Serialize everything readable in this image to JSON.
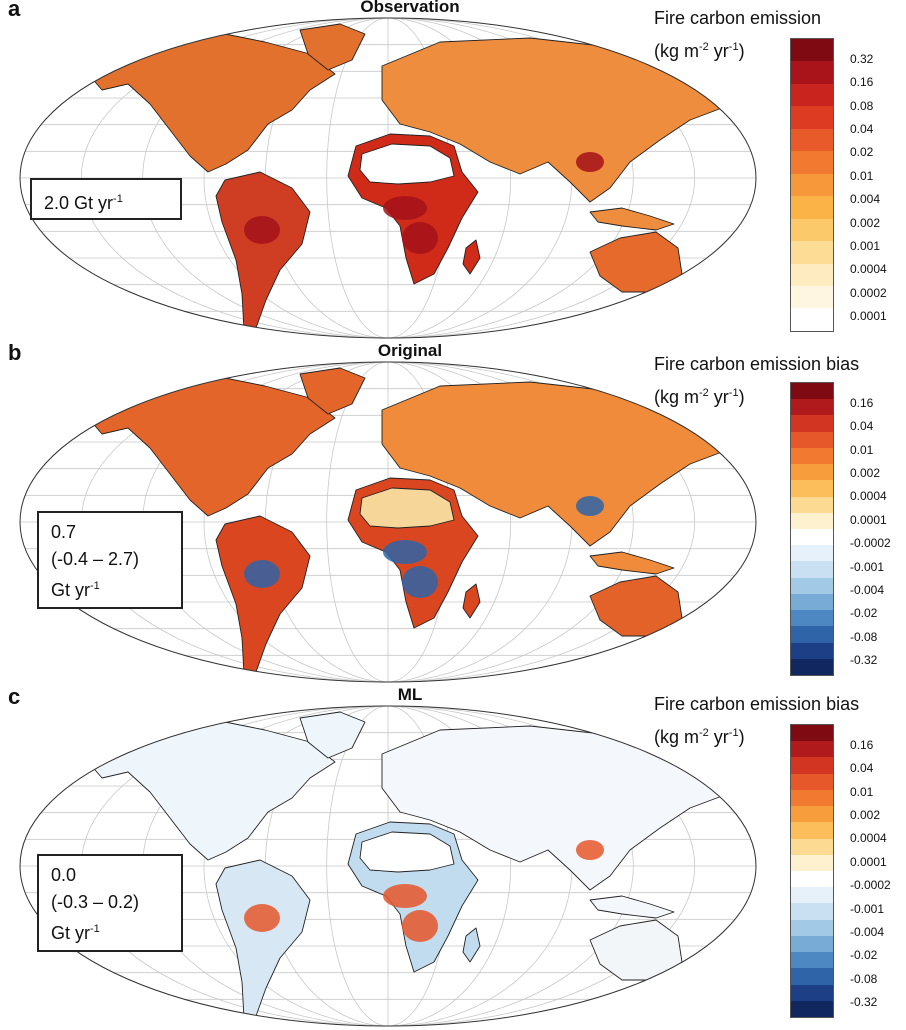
{
  "panels": [
    {
      "letter": "a",
      "title": "Observation",
      "colorbar_title_line1": "Fire carbon emission",
      "unit_pre": "(kg m",
      "unit_sup1": "-2",
      "unit_mid": " yr",
      "unit_sup2": "-1",
      "unit_post": ")",
      "ticks": [
        "0.32",
        "0.16",
        "0.08",
        "0.04",
        "0.02",
        "0.01",
        "0.004",
        "0.002",
        "0.001",
        "0.0004",
        "0.0002",
        "0.0001"
      ],
      "colors": [
        "#7f0a12",
        "#a8141a",
        "#c9251e",
        "#dd3b22",
        "#e85a2a",
        "#f17a30",
        "#f7983a",
        "#fbb347",
        "#fcc96a",
        "#fddd95",
        "#feebc0",
        "#fff6e2",
        "#ffffff"
      ],
      "total_lines": [
        "2.0 Gt yr"
      ],
      "total_unit_sup": "-1",
      "total_sup_line": 0,
      "map_colors": {
        "na": "#e2712d",
        "sa": "#cf3d22",
        "africa": "#d02a18",
        "eurasia": "#ee8d3e",
        "aus": "#e56a2c",
        "sahara": "#ffffff",
        "hot": "#a5121a"
      }
    },
    {
      "letter": "b",
      "title": "Original",
      "colorbar_title_line1": "Fire carbon emission bias",
      "unit_pre": "(kg m",
      "unit_sup1": "-2",
      "unit_mid": " yr",
      "unit_sup2": "-1",
      "unit_post": ")",
      "ticks": [
        "0.16",
        "0.04",
        "0.01",
        "0.002",
        "0.0004",
        "0.0001",
        "-0.0002",
        "-0.001",
        "-0.004",
        "-0.02",
        "-0.08",
        "-0.32"
      ],
      "colors": [
        "#7f0a12",
        "#b11a1c",
        "#d23522",
        "#e6572a",
        "#f17a30",
        "#f89d3c",
        "#fbbe5a",
        "#fdda92",
        "#fef1d0",
        "#ffffff",
        "#e6f1f9",
        "#c8e0f1",
        "#a2c9e6",
        "#78abd6",
        "#4d88c3",
        "#2f64a8",
        "#1d3f86",
        "#102760"
      ],
      "total_lines": [
        "0.7",
        "(-0.4 – 2.7)",
        "Gt yr"
      ],
      "total_unit_sup": "-1",
      "total_sup_line": 2,
      "map_colors": {
        "na": "#e4652a",
        "sa": "#d9461f",
        "africa": "#d9461f",
        "eurasia": "#ef8b3a",
        "aus": "#e3622a",
        "sahara": "#f7d69a",
        "hot": "#2f64a8"
      }
    },
    {
      "letter": "c",
      "title": "ML",
      "colorbar_title_line1": "Fire carbon emission bias",
      "unit_pre": "(kg m",
      "unit_sup1": "-2",
      "unit_mid": " yr",
      "unit_sup2": "-1",
      "unit_post": ")",
      "ticks": [
        "0.16",
        "0.04",
        "0.01",
        "0.002",
        "0.0004",
        "0.0001",
        "-0.0002",
        "-0.001",
        "-0.004",
        "-0.02",
        "-0.08",
        "-0.32"
      ],
      "colors": [
        "#7f0a12",
        "#b11a1c",
        "#d23522",
        "#e6572a",
        "#f17a30",
        "#f89d3c",
        "#fbbe5a",
        "#fdda92",
        "#fef1d0",
        "#ffffff",
        "#e6f1f9",
        "#c8e0f1",
        "#a2c9e6",
        "#78abd6",
        "#4d88c3",
        "#2f64a8",
        "#1d3f86",
        "#102760"
      ],
      "total_lines": [
        "0.0",
        "(-0.3 – 0.2)",
        "Gt yr"
      ],
      "total_unit_sup": "-1",
      "total_sup_line": 2,
      "map_colors": {
        "na": "#eef5fb",
        "sa": "#d7e8f4",
        "africa": "#c2dcef",
        "eurasia": "#f4f7fb",
        "aus": "#f3f6f9",
        "sahara": "#ffffff",
        "hot": "#e6572a"
      }
    }
  ]
}
